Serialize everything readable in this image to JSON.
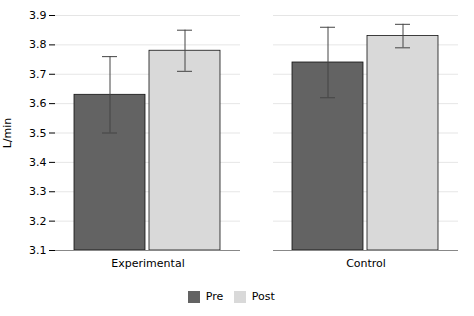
{
  "chart_data": {
    "type": "bar",
    "categories": [
      "Experimental",
      "Control"
    ],
    "series": [
      {
        "name": "Pre",
        "color": "#636363",
        "values": [
          3.63,
          3.74
        ],
        "errors": [
          0.13,
          0.12
        ]
      },
      {
        "name": "Post",
        "color": "#d9d9d9",
        "values": [
          3.78,
          3.83
        ],
        "errors": [
          0.07,
          0.04
        ]
      }
    ],
    "ylabel": "L/min",
    "ylim": [
      3.1,
      3.9
    ],
    "yticks": [
      3.1,
      3.2,
      3.3,
      3.4,
      3.5,
      3.6,
      3.7,
      3.8,
      3.9
    ],
    "grid": true,
    "legend": "bottom"
  }
}
